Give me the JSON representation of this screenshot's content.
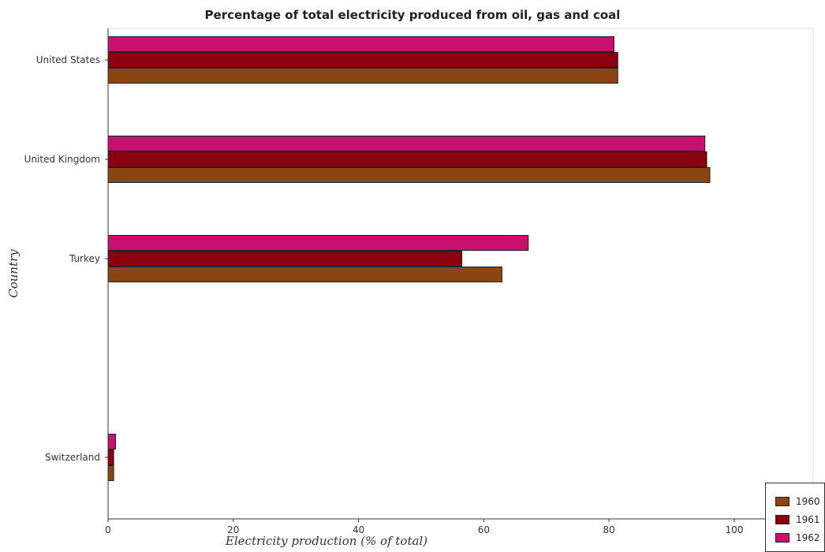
{
  "title": "Percentage of total electricity produced from oil, gas and coal",
  "chart_data": {
    "type": "bar",
    "orientation": "horizontal",
    "xlabel": "Electricity production (% of total)",
    "ylabel": "Country",
    "xlim": [
      0,
      100
    ],
    "xticks": [
      "0",
      "20",
      "40",
      "60",
      "80",
      "100"
    ],
    "categories": [
      "Switzerland",
      "Turkey",
      "United Kingdom",
      "United States"
    ],
    "series": [
      {
        "name": "1960",
        "color": "#8B4513",
        "values": [
          0.9,
          62.9,
          96.1,
          81.4
        ]
      },
      {
        "name": "1961",
        "color": "#8B0010",
        "values": [
          0.9,
          56.5,
          95.6,
          81.4
        ]
      },
      {
        "name": "1962",
        "color": "#C8106E",
        "values": [
          1.2,
          67.1,
          95.3,
          80.8
        ]
      }
    ],
    "legend_position": "bottom-right",
    "grid": false
  }
}
